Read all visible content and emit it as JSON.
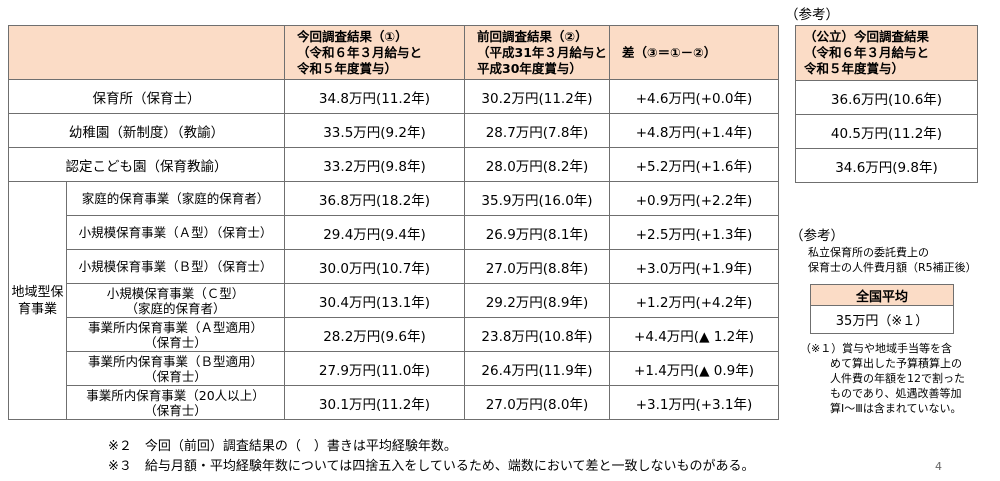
{
  "ref_top_label": "（参考）",
  "main_headers": {
    "current": [
      "今回調査結果（①）",
      "（令和６年３月給与と",
      "令和５年度賞与）"
    ],
    "previous": [
      "前回調査結果（②）",
      "（平成31年３月給与と",
      "平成30年度賞与）"
    ],
    "diff": "差（③＝①－②）"
  },
  "rows": [
    {
      "label": "保育所（保育士）",
      "current": "34.8万円(11.2年)",
      "previous": "30.2万円(11.2年)",
      "diff": "+4.6万円(+0.0年)"
    },
    {
      "label": "幼稚園（新制度）（教諭）",
      "current": "33.5万円(9.2年)",
      "previous": "28.7万円(7.8年)",
      "diff": "+4.8万円(+1.4年)"
    },
    {
      "label": "認定こども園（保育教諭）",
      "current": "33.2万円(9.8年)",
      "previous": "28.0万円(8.2年)",
      "diff": "+5.2万円(+1.6年)"
    }
  ],
  "group_label": [
    "地域型保",
    "育事業"
  ],
  "sub_rows": [
    {
      "label": [
        "家庭的保育事業（家庭的保育者）"
      ],
      "current": "36.8万円(18.2年)",
      "previous": "35.9万円(16.0年)",
      "diff": "+0.9万円(+2.2年)"
    },
    {
      "label": [
        "小規模保育事業（Ａ型）（保育士）"
      ],
      "current": "29.4万円(9.4年)",
      "previous": "26.9万円(8.1年)",
      "diff": "+2.5万円(+1.3年)"
    },
    {
      "label": [
        "小規模保育事業（Ｂ型）（保育士）"
      ],
      "current": "30.0万円(10.7年)",
      "previous": "27.0万円(8.8年)",
      "diff": "+3.0万円(+1.9年)"
    },
    {
      "label": [
        "小規模保育事業（Ｃ型）",
        "（家庭的保育者）"
      ],
      "current": "30.4万円(13.1年)",
      "previous": "29.2万円(8.9年)",
      "diff": "+1.2万円(+4.2年)"
    },
    {
      "label": [
        "事業所内保育事業（Ａ型適用）",
        "（保育士）"
      ],
      "current": "28.2万円(9.6年)",
      "previous": "23.8万円(10.8年)",
      "diff": "+4.4万円(▲ 1.2年)"
    },
    {
      "label": [
        "事業所内保育事業（Ｂ型適用）",
        "（保育士）"
      ],
      "current": "27.9万円(11.0年)",
      "previous": "26.4万円(11.9年)",
      "diff": "+1.4万円(▲ 0.9年)"
    },
    {
      "label": [
        "事業所内保育事業（20人以上）",
        "（保育士）"
      ],
      "current": "30.1万円(11.2年)",
      "previous": "27.0万円(8.0年)",
      "diff": "+3.1万円(+3.1年)"
    }
  ],
  "public_header": [
    "（公立）今回調査結果",
    "（令和６年３月給与と",
    "令和５年度賞与）"
  ],
  "public_values": [
    "36.6万円(10.6年)",
    "40.5万円(11.2年)",
    "34.6万円(9.8年)"
  ],
  "ref2": {
    "title": "（参考）",
    "desc": [
      "私立保育所の委託費上の",
      "保育士の人件費月額（R5補正後）"
    ],
    "avg_header": "全国平均",
    "avg_value": "35万円（※１）",
    "footnote_mark": "（※１）",
    "footnote_lines": [
      "賞与や地域手当等を含",
      "めて算出した予算積算上の",
      "人件費の年額を12で割った",
      "ものであり、処遇改善等加",
      "算Ⅰ～Ⅲは含まれていない。"
    ]
  },
  "notes": [
    "※２　今回（前回）調査結果の（　）書きは平均経験年数。",
    "※３　給与月額・平均経験年数については四捨五入をしているため、端数において差と一致しないものがある。"
  ],
  "page_number": "4",
  "colors": {
    "header_bg": "#fbdcc6",
    "border": "#6f6f6f"
  }
}
